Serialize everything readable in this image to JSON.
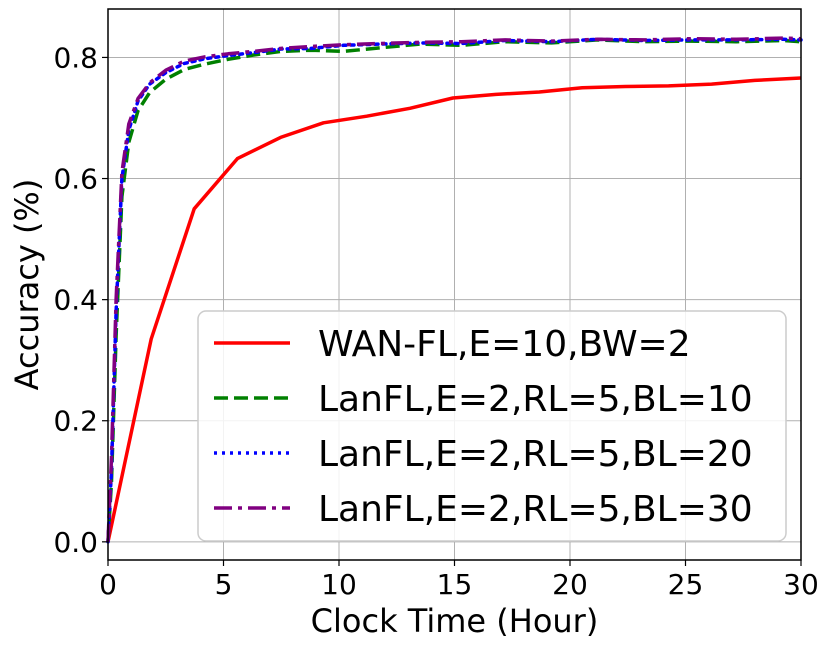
{
  "chart_data": {
    "type": "line",
    "title": "",
    "xlabel": "Clock Time (Hour)",
    "ylabel": "Accuracy (%)",
    "xlim": [
      0,
      30
    ],
    "ylim": [
      -0.03,
      0.88
    ],
    "xticks": [
      0,
      5,
      10,
      15,
      20,
      25,
      30
    ],
    "yticks": [
      0.0,
      0.2,
      0.4,
      0.6,
      0.8
    ],
    "xtick_labels": [
      "0",
      "5",
      "10",
      "15",
      "20",
      "25",
      "30"
    ],
    "ytick_labels": [
      "0.0",
      "0.2",
      "0.4",
      "0.6",
      "0.8"
    ],
    "grid": true,
    "legend_position": "lower-right",
    "series": [
      {
        "name": "WAN-FL,E=10,BW=2",
        "color": "#ff0000",
        "style": "solid",
        "x": [
          0,
          1.87,
          3.73,
          5.6,
          7.47,
          9.33,
          11.2,
          13.07,
          14.93,
          16.8,
          18.67,
          20.53,
          22.4,
          24.27,
          26.13,
          28.0,
          30.0
        ],
        "y": [
          0.0,
          0.335,
          0.55,
          0.633,
          0.668,
          0.692,
          0.703,
          0.716,
          0.733,
          0.739,
          0.743,
          0.75,
          0.752,
          0.753,
          0.756,
          0.762,
          0.766
        ]
      },
      {
        "name": "LanFL,E=2,RL=5,BL=10",
        "color": "#008000",
        "style": "dashed",
        "x": [
          0,
          0.15,
          0.35,
          0.6,
          0.9,
          1.3,
          1.8,
          2.5,
          3.3,
          4.2,
          5.2,
          6.3,
          7.5,
          8.8,
          10.2,
          11.8,
          13.5,
          15.3,
          17.2,
          19.2,
          21.2,
          23.2,
          25.2,
          27.2,
          29.2,
          30.0
        ],
        "y": [
          0.0,
          0.1,
          0.34,
          0.57,
          0.66,
          0.712,
          0.742,
          0.764,
          0.78,
          0.789,
          0.797,
          0.804,
          0.81,
          0.812,
          0.81,
          0.816,
          0.822,
          0.82,
          0.826,
          0.824,
          0.829,
          0.826,
          0.827,
          0.826,
          0.828,
          0.826
        ]
      },
      {
        "name": "LanFL,E=2,RL=5,BL=20",
        "color": "#0000ff",
        "style": "dotted",
        "x": [
          0,
          0.15,
          0.35,
          0.6,
          0.9,
          1.3,
          1.8,
          2.5,
          3.3,
          4.2,
          5.2,
          6.3,
          7.5,
          8.8,
          10.2,
          11.8,
          13.5,
          15.3,
          17.2,
          19.2,
          21.2,
          23.2,
          25.2,
          27.2,
          29.2,
          30.0
        ],
        "y": [
          0.0,
          0.12,
          0.38,
          0.6,
          0.68,
          0.728,
          0.756,
          0.775,
          0.79,
          0.798,
          0.803,
          0.808,
          0.814,
          0.815,
          0.82,
          0.822,
          0.824,
          0.823,
          0.828,
          0.826,
          0.83,
          0.828,
          0.829,
          0.829,
          0.83,
          0.829
        ]
      },
      {
        "name": "LanFL,E=2,RL=5,BL=30",
        "color": "#800080",
        "style": "dashdot",
        "x": [
          0,
          0.15,
          0.35,
          0.6,
          0.9,
          1.3,
          1.8,
          2.5,
          3.3,
          4.2,
          5.2,
          6.3,
          7.5,
          8.8,
          10.2,
          11.8,
          13.5,
          15.3,
          17.2,
          19.2,
          21.2,
          23.2,
          25.2,
          27.2,
          29.2,
          30.0
        ],
        "y": [
          0.0,
          0.14,
          0.4,
          0.61,
          0.69,
          0.732,
          0.758,
          0.779,
          0.794,
          0.801,
          0.806,
          0.81,
          0.815,
          0.818,
          0.821,
          0.823,
          0.825,
          0.826,
          0.829,
          0.827,
          0.83,
          0.829,
          0.831,
          0.83,
          0.832,
          0.831
        ]
      }
    ]
  }
}
